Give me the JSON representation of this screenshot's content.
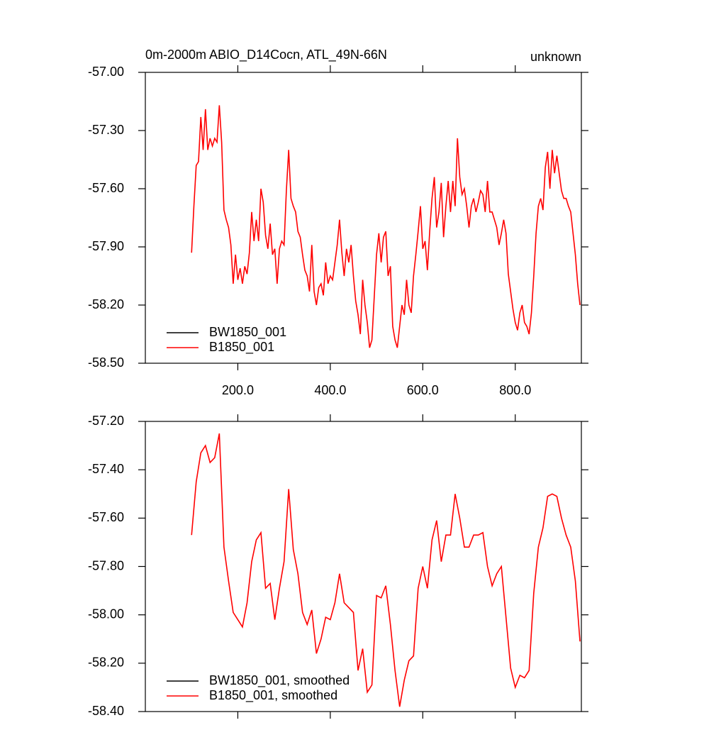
{
  "chart_data": [
    {
      "type": "line",
      "title": "0m-2000m ABIO_D14Cocn, ATL_49N-66N",
      "right_title": "unknown",
      "legend": "lower left",
      "xlim": [
        0,
        943
      ],
      "ylim": [
        -58.5,
        -57
      ],
      "xticks": [
        {
          "value": 200,
          "label": "200.0"
        },
        {
          "value": 400,
          "label": "400.0"
        },
        {
          "value": 600,
          "label": "600.0"
        },
        {
          "value": 800,
          "label": "800.0"
        }
      ],
      "yticks": [
        {
          "value": -57,
          "label": "-57.00"
        },
        {
          "value": -57.3,
          "label": "-57.30"
        },
        {
          "value": -57.6,
          "label": "-57.60"
        },
        {
          "value": -57.9,
          "label": "-57.90"
        },
        {
          "value": -58.2,
          "label": "-58.20"
        },
        {
          "value": -58.5,
          "label": "-58.50"
        }
      ],
      "x": [
        100,
        105,
        110,
        115,
        120,
        125,
        130,
        135,
        140,
        145,
        150,
        155,
        160,
        165,
        170,
        175,
        180,
        185,
        190,
        195,
        200,
        205,
        210,
        215,
        220,
        225,
        230,
        235,
        240,
        245,
        250,
        255,
        260,
        265,
        270,
        275,
        280,
        285,
        290,
        295,
        300,
        305,
        310,
        315,
        320,
        325,
        330,
        335,
        340,
        345,
        350,
        355,
        360,
        365,
        370,
        375,
        380,
        385,
        390,
        395,
        400,
        405,
        410,
        415,
        420,
        425,
        430,
        435,
        440,
        445,
        450,
        455,
        460,
        465,
        470,
        475,
        480,
        485,
        490,
        495,
        500,
        505,
        510,
        515,
        520,
        525,
        530,
        535,
        540,
        545,
        550,
        555,
        560,
        565,
        570,
        575,
        580,
        585,
        590,
        595,
        600,
        605,
        610,
        615,
        620,
        625,
        630,
        635,
        640,
        645,
        650,
        655,
        660,
        665,
        670,
        675,
        680,
        685,
        690,
        695,
        700,
        705,
        710,
        715,
        720,
        725,
        730,
        735,
        740,
        745,
        750,
        755,
        760,
        765,
        770,
        775,
        780,
        785,
        790,
        795,
        800,
        805,
        810,
        815,
        820,
        825,
        830,
        835,
        840,
        845,
        850,
        855,
        860,
        865,
        870,
        875,
        880,
        885,
        890,
        895,
        900,
        905,
        910,
        915,
        920,
        925,
        930,
        935,
        940
      ],
      "series": [
        {
          "name": "BW1850_001",
          "color": "#000000",
          "values": [
            null,
            null,
            null,
            null,
            null,
            null,
            null,
            null,
            null,
            null,
            null,
            null,
            null,
            null,
            null,
            null,
            null,
            null,
            null,
            null,
            null,
            null,
            null,
            null,
            null,
            null,
            null,
            null,
            null,
            null,
            null,
            null,
            null,
            null,
            null,
            null,
            null,
            null,
            null,
            null,
            null,
            null,
            null,
            null,
            null,
            null,
            null,
            null,
            null,
            null,
            null,
            null,
            null,
            null,
            null,
            null,
            null,
            null,
            null,
            null,
            null,
            null,
            null,
            null,
            null,
            null,
            null,
            null,
            null,
            null,
            null,
            null,
            null,
            null,
            null,
            null,
            null,
            null,
            null,
            null,
            null,
            null,
            null,
            null,
            null,
            null,
            null,
            null,
            null,
            null,
            null,
            null,
            null,
            null,
            null,
            null,
            null,
            null,
            null,
            null,
            null,
            null,
            null,
            null,
            null,
            null,
            null,
            null,
            null,
            null,
            null,
            null,
            null,
            null,
            null,
            null,
            null,
            null,
            null,
            null,
            null,
            null,
            null,
            null,
            null,
            null,
            null,
            null,
            null,
            null,
            null,
            null,
            null,
            null,
            null,
            null,
            null,
            null,
            null,
            null,
            null,
            null,
            null,
            null,
            null,
            null,
            null,
            null,
            null,
            null,
            null,
            null,
            null,
            null,
            null,
            null,
            null,
            null,
            null,
            null,
            null,
            null,
            null,
            null,
            null,
            null,
            null,
            null,
            null
          ]
        },
        {
          "name": "B1850_001",
          "color": "#ff0000",
          "values": [
            -57.93,
            -57.69,
            -57.48,
            -57.46,
            -57.23,
            -57.4,
            -57.19,
            -57.4,
            -57.34,
            -57.38,
            -57.34,
            -57.36,
            -57.17,
            -57.36,
            -57.71,
            -57.76,
            -57.8,
            -57.89,
            -58.09,
            -57.94,
            -58.07,
            -58.01,
            -58.09,
            -58.0,
            -58.04,
            -57.93,
            -57.72,
            -57.87,
            -57.76,
            -57.87,
            -57.6,
            -57.67,
            -57.84,
            -57.91,
            -57.78,
            -57.94,
            -57.91,
            -58.09,
            -57.91,
            -57.87,
            -57.89,
            -57.61,
            -57.4,
            -57.65,
            -57.69,
            -57.72,
            -57.82,
            -57.85,
            -57.94,
            -58.02,
            -58.05,
            -58.13,
            -57.89,
            -58.13,
            -58.2,
            -58.11,
            -58.09,
            -58.15,
            -57.98,
            -58.09,
            -58.05,
            -58.07,
            -57.98,
            -57.89,
            -57.76,
            -57.93,
            -58.05,
            -57.91,
            -57.98,
            -57.89,
            -58.05,
            -58.18,
            -58.25,
            -58.35,
            -58.07,
            -58.2,
            -58.29,
            -58.42,
            -58.38,
            -58.16,
            -57.94,
            -57.83,
            -57.98,
            -57.85,
            -57.82,
            -58.05,
            -58.0,
            -58.31,
            -58.38,
            -58.42,
            -58.31,
            -58.2,
            -58.25,
            -58.07,
            -58.2,
            -58.24,
            -58.05,
            -57.94,
            -57.82,
            -57.69,
            -57.91,
            -57.87,
            -58.02,
            -57.82,
            -57.65,
            -57.54,
            -57.8,
            -57.72,
            -57.57,
            -57.85,
            -57.69,
            -57.56,
            -57.72,
            -57.56,
            -57.69,
            -57.34,
            -57.54,
            -57.63,
            -57.6,
            -57.69,
            -57.8,
            -57.69,
            -57.65,
            -57.72,
            -57.67,
            -57.61,
            -57.63,
            -57.72,
            -57.56,
            -57.72,
            -57.72,
            -57.76,
            -57.8,
            -57.89,
            -57.83,
            -57.76,
            -57.83,
            -58.04,
            -58.13,
            -58.22,
            -58.29,
            -58.33,
            -58.24,
            -58.2,
            -58.29,
            -58.31,
            -58.35,
            -58.24,
            -58.05,
            -57.83,
            -57.69,
            -57.65,
            -57.71,
            -57.49,
            -57.41,
            -57.6,
            -57.4,
            -57.52,
            -57.43,
            -57.52,
            -57.61,
            -57.65,
            -57.65,
            -57.69,
            -57.72,
            -57.83,
            -57.94,
            -58.09,
            -58.2
          ]
        }
      ]
    },
    {
      "type": "line",
      "legend": "lower left",
      "xlim": [
        0,
        943
      ],
      "ylim": [
        -58.4,
        -57.2
      ],
      "xticks": [
        200,
        400,
        600,
        800
      ],
      "yticks": [
        {
          "value": -57.2,
          "label": "-57.20"
        },
        {
          "value": -57.4,
          "label": "-57.40"
        },
        {
          "value": -57.6,
          "label": "-57.60"
        },
        {
          "value": -57.8,
          "label": "-57.80"
        },
        {
          "value": -58,
          "label": "-58.00"
        },
        {
          "value": -58.2,
          "label": "-58.20"
        },
        {
          "value": -58.4,
          "label": "-58.40"
        }
      ],
      "x": [
        100,
        110,
        120,
        130,
        140,
        150,
        160,
        170,
        180,
        190,
        200,
        210,
        220,
        230,
        240,
        250,
        260,
        270,
        280,
        290,
        300,
        310,
        320,
        330,
        340,
        350,
        360,
        370,
        380,
        390,
        400,
        410,
        420,
        430,
        440,
        450,
        460,
        470,
        480,
        490,
        500,
        510,
        520,
        530,
        540,
        550,
        560,
        570,
        580,
        590,
        600,
        610,
        620,
        630,
        640,
        650,
        660,
        670,
        680,
        690,
        700,
        710,
        720,
        730,
        740,
        750,
        760,
        770,
        780,
        790,
        800,
        810,
        820,
        830,
        840,
        850,
        860,
        870,
        880,
        890,
        900,
        910,
        920,
        930,
        940
      ],
      "series": [
        {
          "name": "BW1850_001, smoothed",
          "color": "#000000",
          "values": [
            null,
            null,
            null,
            null,
            null,
            null,
            null,
            null,
            null,
            null,
            null,
            null,
            null,
            null,
            null,
            null,
            null,
            null,
            null,
            null,
            null,
            null,
            null,
            null,
            null,
            null,
            null,
            null,
            null,
            null,
            null,
            null,
            null,
            null,
            null,
            null,
            null,
            null,
            null,
            null,
            null,
            null,
            null,
            null,
            null,
            null,
            null,
            null,
            null,
            null,
            null,
            null,
            null,
            null,
            null,
            null,
            null,
            null,
            null,
            null,
            null,
            null,
            null,
            null,
            null,
            null,
            null,
            null,
            null,
            null,
            null,
            null,
            null,
            null,
            null,
            null,
            null,
            null,
            null,
            null,
            null,
            null,
            null,
            null,
            null
          ]
        },
        {
          "name": "B1850_001, smoothed",
          "color": "#ff0000",
          "values": [
            -57.67,
            -57.45,
            -57.33,
            -57.3,
            -57.37,
            -57.35,
            -57.25,
            -57.72,
            -57.86,
            -57.99,
            -58.02,
            -58.05,
            -57.95,
            -57.78,
            -57.69,
            -57.66,
            -57.89,
            -57.87,
            -58.02,
            -57.89,
            -57.78,
            -57.48,
            -57.73,
            -57.83,
            -57.99,
            -58.04,
            -57.98,
            -58.16,
            -58.1,
            -58.01,
            -58.02,
            -57.95,
            -57.83,
            -57.95,
            -57.97,
            -57.99,
            -58.23,
            -58.14,
            -58.32,
            -58.29,
            -57.92,
            -57.93,
            -57.88,
            -58.04,
            -58.23,
            -58.38,
            -58.27,
            -58.19,
            -58.17,
            -57.89,
            -57.8,
            -57.89,
            -57.69,
            -57.61,
            -57.78,
            -57.67,
            -57.67,
            -57.5,
            -57.6,
            -57.72,
            -57.72,
            -57.67,
            -57.67,
            -57.66,
            -57.8,
            -57.88,
            -57.83,
            -57.8,
            -58.01,
            -58.22,
            -58.3,
            -58.25,
            -58.26,
            -58.23,
            -57.91,
            -57.72,
            -57.64,
            -57.51,
            -57.5,
            -57.51,
            -57.6,
            -57.67,
            -57.72,
            -57.86,
            -58.11
          ]
        }
      ]
    }
  ]
}
